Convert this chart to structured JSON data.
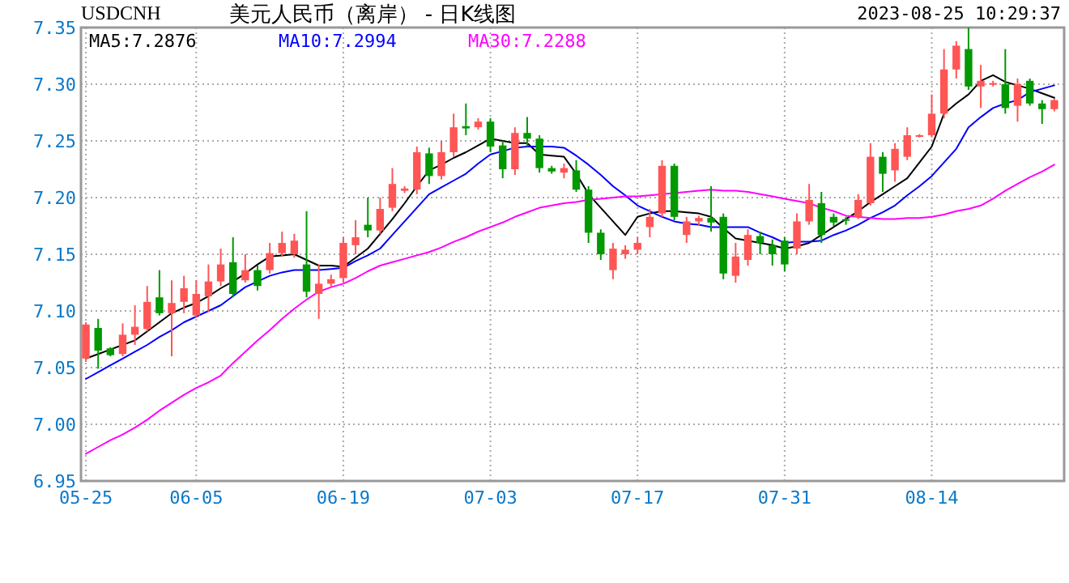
{
  "chart_data": {
    "type": "candlestick",
    "title": "美元人民币（离岸） - 日K线图",
    "subtitle": "USDCNH",
    "annotations": [
      "2023-08-25 10:29:37"
    ],
    "ylim": [
      6.95,
      7.35
    ],
    "yticks": [
      {
        "value": 6.95,
        "label": "6.95"
      },
      {
        "value": 7.0,
        "label": "7.00"
      },
      {
        "value": 7.05,
        "label": "7.05"
      },
      {
        "value": 7.1,
        "label": "7.10"
      },
      {
        "value": 7.15,
        "label": "7.15"
      },
      {
        "value": 7.2,
        "label": "7.20"
      },
      {
        "value": 7.25,
        "label": "7.25"
      },
      {
        "value": 7.3,
        "label": "7.30"
      },
      {
        "value": 7.35,
        "label": "7.35"
      }
    ],
    "grid": true,
    "legend": "top left",
    "categories": [
      "05-25",
      null,
      null,
      null,
      null,
      null,
      null,
      null,
      null,
      "06-05",
      null,
      null,
      null,
      null,
      null,
      null,
      null,
      null,
      null,
      null,
      null,
      "06-19",
      null,
      null,
      null,
      null,
      null,
      null,
      null,
      null,
      null,
      null,
      null,
      "07-03",
      null,
      null,
      null,
      null,
      null,
      null,
      null,
      null,
      null,
      null,
      null,
      "07-17",
      null,
      null,
      null,
      null,
      null,
      null,
      null,
      null,
      null,
      null,
      null,
      "07-31",
      null,
      null,
      null,
      null,
      null,
      null,
      null,
      null,
      null,
      null,
      null,
      "08-14",
      null,
      null,
      null,
      null,
      null,
      null,
      null,
      null,
      null,
      null
    ],
    "ohlc": [
      [
        7.058,
        7.09,
        7.055,
        7.088
      ],
      [
        7.085,
        7.093,
        7.049,
        7.065
      ],
      [
        7.067,
        7.068,
        7.06,
        7.061
      ],
      [
        7.062,
        7.089,
        7.06,
        7.079
      ],
      [
        7.079,
        7.105,
        7.07,
        7.086
      ],
      [
        7.084,
        7.122,
        7.082,
        7.108
      ],
      [
        7.112,
        7.136,
        7.096,
        7.098
      ],
      [
        7.098,
        7.127,
        7.06,
        7.107
      ],
      [
        7.108,
        7.131,
        7.098,
        7.12
      ],
      [
        7.096,
        7.127,
        7.094,
        7.115
      ],
      [
        7.113,
        7.141,
        7.099,
        7.126
      ],
      [
        7.126,
        7.155,
        7.122,
        7.141
      ],
      [
        7.143,
        7.165,
        7.112,
        7.115
      ],
      [
        7.127,
        7.15,
        7.125,
        7.136
      ],
      [
        7.136,
        7.14,
        7.118,
        7.122
      ],
      [
        7.136,
        7.16,
        7.133,
        7.151
      ],
      [
        7.151,
        7.17,
        7.148,
        7.16
      ],
      [
        7.15,
        7.168,
        7.147,
        7.162
      ],
      [
        7.141,
        7.188,
        7.112,
        7.117
      ],
      [
        7.115,
        7.141,
        7.093,
        7.124
      ],
      [
        7.124,
        7.132,
        7.12,
        7.128
      ],
      [
        7.129,
        7.165,
        7.125,
        7.16
      ],
      [
        7.158,
        7.18,
        7.15,
        7.165
      ],
      [
        7.176,
        7.2,
        7.165,
        7.171
      ],
      [
        7.171,
        7.2,
        7.168,
        7.19
      ],
      [
        7.191,
        7.226,
        7.188,
        7.212
      ],
      [
        7.206,
        7.21,
        7.204,
        7.208
      ],
      [
        7.207,
        7.245,
        7.203,
        7.24
      ],
      [
        7.239,
        7.244,
        7.212,
        7.219
      ],
      [
        7.219,
        7.25,
        7.216,
        7.24
      ],
      [
        7.24,
        7.274,
        7.236,
        7.262
      ],
      [
        7.263,
        7.283,
        7.255,
        7.261
      ],
      [
        7.262,
        7.27,
        7.26,
        7.267
      ],
      [
        7.267,
        7.27,
        7.24,
        7.245
      ],
      [
        7.246,
        7.25,
        7.217,
        7.225
      ],
      [
        7.225,
        7.262,
        7.22,
        7.257
      ],
      [
        7.257,
        7.271,
        7.245,
        7.252
      ],
      [
        7.252,
        7.255,
        7.222,
        7.226
      ],
      [
        7.226,
        7.228,
        7.221,
        7.223
      ],
      [
        7.222,
        7.23,
        7.217,
        7.226
      ],
      [
        7.224,
        7.233,
        7.205,
        7.207
      ],
      [
        7.207,
        7.21,
        7.16,
        7.169
      ],
      [
        7.169,
        7.172,
        7.145,
        7.15
      ],
      [
        7.136,
        7.16,
        7.128,
        7.155
      ],
      [
        7.15,
        7.158,
        7.146,
        7.154
      ],
      [
        7.154,
        7.165,
        7.15,
        7.16
      ],
      [
        7.174,
        7.19,
        7.165,
        7.183
      ],
      [
        7.186,
        7.233,
        7.183,
        7.228
      ],
      [
        7.228,
        7.23,
        7.18,
        7.183
      ],
      [
        7.167,
        7.183,
        7.16,
        7.179
      ],
      [
        7.179,
        7.184,
        7.175,
        7.182
      ],
      [
        7.182,
        7.21,
        7.17,
        7.178
      ],
      [
        7.183,
        7.186,
        7.128,
        7.133
      ],
      [
        7.131,
        7.16,
        7.125,
        7.148
      ],
      [
        7.145,
        7.172,
        7.14,
        7.167
      ],
      [
        7.166,
        7.17,
        7.15,
        7.16
      ],
      [
        7.158,
        7.163,
        7.14,
        7.15
      ],
      [
        7.162,
        7.165,
        7.135,
        7.141
      ],
      [
        7.155,
        7.186,
        7.15,
        7.179
      ],
      [
        7.179,
        7.212,
        7.176,
        7.198
      ],
      [
        7.195,
        7.205,
        7.16,
        7.167
      ],
      [
        7.183,
        7.186,
        7.175,
        7.178
      ],
      [
        7.181,
        7.183,
        7.176,
        7.18
      ],
      [
        7.183,
        7.203,
        7.181,
        7.198
      ],
      [
        7.195,
        7.248,
        7.193,
        7.236
      ],
      [
        7.236,
        7.24,
        7.205,
        7.221
      ],
      [
        7.224,
        7.248,
        7.214,
        7.243
      ],
      [
        7.236,
        7.262,
        7.233,
        7.255
      ],
      [
        7.254,
        7.256,
        7.253,
        7.255
      ],
      [
        7.255,
        7.291,
        7.253,
        7.274
      ],
      [
        7.274,
        7.331,
        7.27,
        7.313
      ],
      [
        7.313,
        7.338,
        7.305,
        7.334
      ],
      [
        7.331,
        7.35,
        7.295,
        7.298
      ],
      [
        7.298,
        7.317,
        7.279,
        7.303
      ],
      [
        7.3,
        7.303,
        7.298,
        7.301
      ],
      [
        7.3,
        7.331,
        7.274,
        7.279
      ],
      [
        7.281,
        7.305,
        7.267,
        7.3
      ],
      [
        7.303,
        7.305,
        7.281,
        7.283
      ],
      [
        7.283,
        7.286,
        7.265,
        7.278
      ],
      [
        7.278,
        7.287,
        7.276,
        7.286
      ]
    ],
    "colors": [
      "#ff5555",
      "#009900",
      "#009900",
      "#ff5555",
      "#ff5555",
      "#ff5555",
      "#009900",
      "#ff5555",
      "#ff5555",
      "#ff5555",
      "#ff5555",
      "#ff5555",
      "#009900",
      "#ff5555",
      "#009900",
      "#ff5555",
      "#ff5555",
      "#ff5555",
      "#009900",
      "#ff5555",
      "#ff5555",
      "#ff5555",
      "#ff5555",
      "#009900",
      "#ff5555",
      "#ff5555",
      "#ff5555",
      "#ff5555",
      "#009900",
      "#ff5555",
      "#ff5555",
      "#009900",
      "#ff5555",
      "#009900",
      "#009900",
      "#ff5555",
      "#009900",
      "#009900",
      "#009900",
      "#ff5555",
      "#009900",
      "#009900",
      "#009900",
      "#ff5555",
      "#ff5555",
      "#ff5555",
      "#ff5555",
      "#ff5555",
      "#009900",
      "#ff5555",
      "#ff5555",
      "#009900",
      "#009900",
      "#ff5555",
      "#ff5555",
      "#009900",
      "#009900",
      "#009900",
      "#ff5555",
      "#ff5555",
      "#009900",
      "#009900",
      "#009900",
      "#ff5555",
      "#ff5555",
      "#009900",
      "#ff5555",
      "#ff5555",
      "#ff5555",
      "#ff5555",
      "#ff5555",
      "#ff5555",
      "#009900",
      "#ff5555",
      "#ff5555",
      "#009900",
      "#ff5555",
      "#009900",
      "#009900",
      "#ff5555"
    ],
    "series": [
      {
        "type": "line",
        "name": "MA5:7.2876",
        "color": "#000000",
        "values": [
          7.058,
          7.062,
          7.066,
          7.07,
          7.074,
          7.082,
          7.09,
          7.098,
          7.103,
          7.107,
          7.113,
          7.12,
          7.126,
          7.133,
          7.141,
          7.148,
          7.149,
          7.15,
          7.145,
          7.14,
          7.14,
          7.139,
          7.147,
          7.155,
          7.168,
          7.181,
          7.195,
          7.21,
          7.224,
          7.229,
          7.235,
          7.24,
          7.246,
          7.252,
          7.25,
          7.248,
          7.248,
          7.238,
          7.237,
          7.236,
          7.221,
          7.203,
          7.191,
          7.179,
          7.167,
          7.183,
          7.186,
          7.188,
          7.188,
          7.187,
          7.186,
          7.183,
          7.173,
          7.164,
          7.162,
          7.16,
          7.158,
          7.155,
          7.157,
          7.16,
          7.167,
          7.174,
          7.181,
          7.188,
          7.196,
          7.203,
          7.21,
          7.217,
          7.231,
          7.245,
          7.274,
          7.283,
          7.291,
          7.303,
          7.308,
          7.302,
          7.299,
          7.296,
          7.292,
          7.288
        ]
      },
      {
        "type": "line",
        "name": "MA10:7.2994",
        "color": "#0000ff",
        "values": [
          7.04,
          7.046,
          7.052,
          7.058,
          7.064,
          7.07,
          7.077,
          7.083,
          7.09,
          7.095,
          7.1,
          7.105,
          7.113,
          7.121,
          7.126,
          7.131,
          7.134,
          7.136,
          7.136,
          7.136,
          7.137,
          7.138,
          7.144,
          7.149,
          7.155,
          7.167,
          7.179,
          7.191,
          7.203,
          7.209,
          7.215,
          7.221,
          7.23,
          7.238,
          7.241,
          7.244,
          7.245,
          7.245,
          7.245,
          7.244,
          7.237,
          7.229,
          7.22,
          7.21,
          7.202,
          7.193,
          7.188,
          7.183,
          7.179,
          7.177,
          7.176,
          7.174,
          7.174,
          7.174,
          7.174,
          7.169,
          7.165,
          7.16,
          7.161,
          7.161,
          7.162,
          7.167,
          7.171,
          7.176,
          7.182,
          7.187,
          7.193,
          7.202,
          7.21,
          7.219,
          7.231,
          7.243,
          7.262,
          7.271,
          7.279,
          7.283,
          7.286,
          7.293,
          7.296,
          7.299
        ]
      },
      {
        "type": "line",
        "name": "MA30:7.2288",
        "color": "#ff00ff",
        "values": [
          6.974,
          6.98,
          6.986,
          6.991,
          6.997,
          7.004,
          7.012,
          7.019,
          7.026,
          7.032,
          7.037,
          7.043,
          7.054,
          7.064,
          7.074,
          7.083,
          7.093,
          7.102,
          7.11,
          7.117,
          7.121,
          7.124,
          7.129,
          7.135,
          7.14,
          7.143,
          7.146,
          7.149,
          7.152,
          7.156,
          7.161,
          7.165,
          7.17,
          7.174,
          7.178,
          7.183,
          7.187,
          7.191,
          7.193,
          7.195,
          7.196,
          7.198,
          7.199,
          7.2,
          7.201,
          7.201,
          7.202,
          7.203,
          7.204,
          7.205,
          7.206,
          7.207,
          7.206,
          7.206,
          7.205,
          7.203,
          7.201,
          7.199,
          7.197,
          7.195,
          7.191,
          7.188,
          7.184,
          7.183,
          7.182,
          7.181,
          7.181,
          7.182,
          7.182,
          7.183,
          7.185,
          7.188,
          7.19,
          7.193,
          7.199,
          7.206,
          7.212,
          7.218,
          7.223,
          7.229
        ]
      }
    ]
  }
}
